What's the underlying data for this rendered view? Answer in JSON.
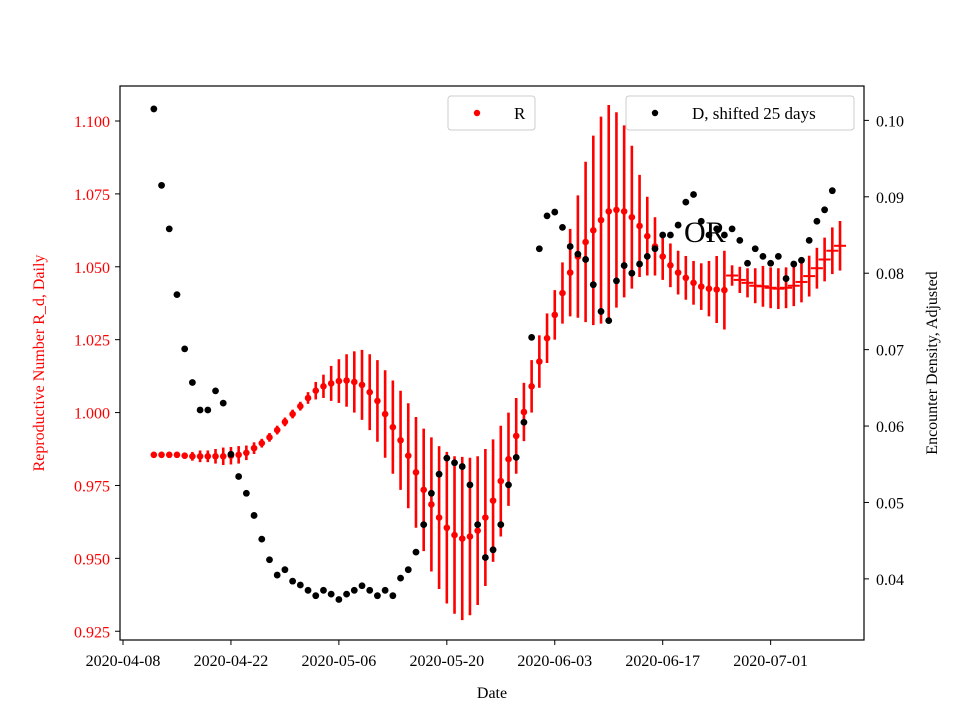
{
  "chart_data": {
    "type": "scatter",
    "xlabel": "Date",
    "ylabel_left": "Reproductive Number R_d, Daily",
    "ylabel_right": "Encounter Density, Adjusted",
    "x_tick_labels": [
      "2020-04-08",
      "2020-04-22",
      "2020-05-06",
      "2020-05-20",
      "2020-06-03",
      "2020-06-17",
      "2020-07-01"
    ],
    "ylim_left": [
      0.922,
      1.112
    ],
    "yticks_left": [
      "0.925",
      "0.950",
      "0.975",
      "1.000",
      "1.025",
      "1.050",
      "1.075",
      "1.100"
    ],
    "ylim_right": [
      0.032,
      0.1045
    ],
    "yticks_right": [
      "0.04",
      "0.05",
      "0.06",
      "0.07",
      "0.08",
      "0.09",
      "0.10"
    ],
    "annotation": "OR",
    "grid": false,
    "legend_placement": "top-center and top-right",
    "series": [
      {
        "name": "R",
        "axis": "left",
        "color": "#ff0000",
        "marker": "circle with vertical error bars",
        "start_date": "2020-04-12",
        "values": [
          0.9855,
          0.9855,
          0.9855,
          0.9855,
          0.9852,
          0.985,
          0.985,
          0.985,
          0.985,
          0.985,
          0.9852,
          0.9855,
          0.9862,
          0.9878,
          0.9895,
          0.9915,
          0.994,
          0.9968,
          0.9995,
          1.0022,
          1.005,
          1.0075,
          1.009,
          1.01,
          1.0108,
          1.011,
          1.0105,
          1.0095,
          1.007,
          1.004,
          0.9995,
          0.995,
          0.9905,
          0.9852,
          0.9795,
          0.9735,
          0.9685,
          0.964,
          0.9605,
          0.958,
          0.9568,
          0.9575,
          0.9595,
          0.964,
          0.9698,
          0.9765,
          0.984,
          0.992,
          1.0002,
          1.009,
          1.0175,
          1.0255,
          1.0335,
          1.041,
          1.048,
          1.0535,
          1.0585,
          1.0625,
          1.066,
          1.069,
          1.0695,
          1.069,
          1.067,
          1.064,
          1.0605,
          1.057,
          1.0535,
          1.0505,
          1.048,
          1.0462,
          1.0445,
          1.0432,
          1.0425,
          1.0422,
          1.042,
          1.047,
          1.0455,
          1.0445,
          1.0435,
          1.0433,
          1.0428,
          1.0425,
          1.0428,
          1.0435,
          1.0448,
          1.0468,
          1.0495,
          1.0525,
          1.0555,
          1.0572
        ],
        "errors": [
          0.001,
          0.001,
          0.001,
          0.001,
          0.001,
          0.0015,
          0.002,
          0.002,
          0.0025,
          0.003,
          0.003,
          0.003,
          0.0025,
          0.002,
          0.0015,
          0.0015,
          0.0015,
          0.0015,
          0.0015,
          0.0015,
          0.002,
          0.003,
          0.004,
          0.006,
          0.0075,
          0.009,
          0.0105,
          0.012,
          0.013,
          0.014,
          0.015,
          0.016,
          0.017,
          0.018,
          0.019,
          0.021,
          0.023,
          0.0245,
          0.026,
          0.027,
          0.028,
          0.027,
          0.0255,
          0.0235,
          0.021,
          0.019,
          0.016,
          0.013,
          0.01,
          0.009,
          0.009,
          0.0085,
          0.0085,
          0.0105,
          0.015,
          0.021,
          0.0275,
          0.0325,
          0.0355,
          0.0365,
          0.0335,
          0.0295,
          0.0245,
          0.0175,
          0.0135,
          0.01,
          0.008,
          0.0075,
          0.0075,
          0.0075,
          0.0075,
          0.008,
          0.0095,
          0.0115,
          0.0135,
          0.0035,
          0.0045,
          0.005,
          0.006,
          0.007,
          0.007,
          0.007,
          0.007,
          0.007,
          0.007,
          0.007,
          0.007,
          0.0075,
          0.008,
          0.0085
        ]
      },
      {
        "name": "D, shifted 25 days",
        "axis": "right",
        "color": "#000000",
        "marker": "circle",
        "start_date": "2020-04-12",
        "values": [
          0.1015,
          0.0915,
          0.0858,
          0.0772,
          0.0701,
          0.0657,
          0.0621,
          0.0621,
          0.0646,
          0.063,
          0.0563,
          0.0534,
          0.0512,
          0.0483,
          0.0452,
          0.0425,
          0.0405,
          0.0412,
          0.0397,
          0.0392,
          0.0385,
          0.0378,
          0.0385,
          0.038,
          0.0373,
          0.038,
          0.0385,
          0.0391,
          0.0385,
          0.0378,
          0.0385,
          0.0378,
          0.0401,
          0.0412,
          0.0435,
          0.0471,
          0.0512,
          0.0537,
          0.0558,
          0.0552,
          0.0547,
          0.0523,
          0.0471,
          0.0428,
          0.0438,
          0.0471,
          0.0523,
          0.0559,
          0.0605,
          0.0716,
          0.0832,
          0.0875,
          0.088,
          0.086,
          0.0835,
          0.0825,
          0.0818,
          0.0785,
          0.075,
          0.0738,
          0.079,
          0.081,
          0.08,
          0.0812,
          0.0822,
          0.0832,
          0.085,
          0.085,
          0.0863,
          0.0893,
          0.0903,
          0.0868,
          0.085,
          0.0858,
          0.085,
          0.0858,
          0.0843,
          0.0813,
          0.0832,
          0.0822,
          0.0813,
          0.0822,
          0.0793,
          0.0812,
          0.0817,
          0.0843,
          0.0868,
          0.0883,
          0.0908
        ],
        "x_offsets_days": [
          0,
          1,
          2,
          3,
          4,
          5,
          6,
          7,
          8,
          9,
          10,
          11,
          12,
          13,
          14,
          15,
          16,
          17,
          18,
          19,
          20,
          21,
          22,
          23,
          24,
          25,
          26,
          27,
          28,
          29,
          30,
          31,
          32,
          33,
          34,
          35,
          36,
          37,
          38,
          39,
          40,
          41,
          42,
          43,
          44,
          45,
          46,
          47,
          48,
          49,
          50,
          51,
          52,
          53,
          54,
          55,
          56,
          57,
          58,
          59,
          60,
          61,
          62,
          63,
          64,
          65,
          66,
          67,
          68,
          69,
          70,
          71,
          72,
          73,
          74,
          75,
          76,
          77,
          78,
          79,
          80,
          81,
          82,
          83,
          84,
          85,
          86,
          87,
          88
        ]
      }
    ]
  }
}
